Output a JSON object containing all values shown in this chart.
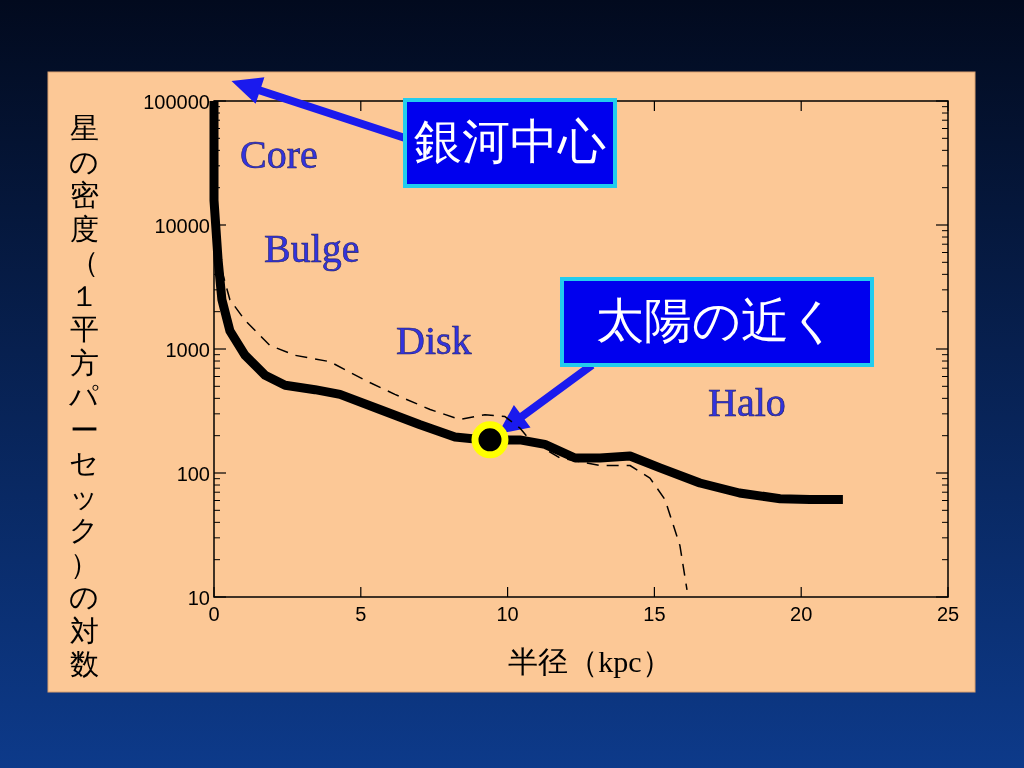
{
  "chart_data": {
    "type": "line",
    "xlabel": "半径（kpc）",
    "ylabel": "星の密度（１平方パーセック）の対数",
    "log": "y",
    "xlim": [
      0,
      25
    ],
    "ylim": [
      10,
      100000
    ],
    "xticks": [
      0,
      5,
      10,
      15,
      20,
      25
    ],
    "yticks": [
      10,
      100,
      1000,
      10000,
      100000
    ],
    "series": [
      {
        "color": "#000000",
        "line_style": "solid",
        "x": [
          0,
          0,
          0.14,
          0.27,
          0.54,
          1.06,
          1.74,
          2.42,
          3.44,
          4.29,
          5.65,
          7.02,
          8.21,
          8.72,
          9.4,
          10.42,
          11.27,
          12.3,
          13.15,
          14.17,
          15.19,
          16.55,
          17.9,
          19.28,
          20.3,
          21.42
        ],
        "values": [
          100000,
          15800,
          5200,
          2500,
          1400,
          890,
          615,
          510,
          470,
          430,
          325,
          245,
          195,
          190,
          185,
          185,
          170,
          132,
          132,
          137,
          110,
          83,
          69,
          62,
          61,
          61
        ]
      },
      {
        "color": "#000000",
        "line_style": "dashed",
        "x": [
          0.07,
          0.54,
          1.06,
          1.9,
          2.76,
          3.95,
          5.14,
          6.16,
          7.36,
          8.38,
          9.23,
          9.91,
          10.42,
          10.76,
          11.78,
          13.15,
          14.17,
          14.85,
          15.36,
          15.87,
          16.11
        ],
        "values": [
          6300,
          2500,
          1700,
          1070,
          890,
          790,
          560,
          430,
          325,
          270,
          295,
          285,
          230,
          185,
          132,
          115,
          115,
          91,
          61,
          26,
          11.4
        ]
      },
      {
        "type": "scatter",
        "color": "#000000",
        "marker": "circle",
        "x": [
          9.4
        ],
        "values": [
          185
        ]
      }
    ],
    "annotations": [
      "Core",
      "Bulge",
      "Disk",
      "Halo",
      "銀河中心",
      {
        "text": "太陽の近く",
        "x": 9.4,
        "y": 185
      }
    ]
  }
}
